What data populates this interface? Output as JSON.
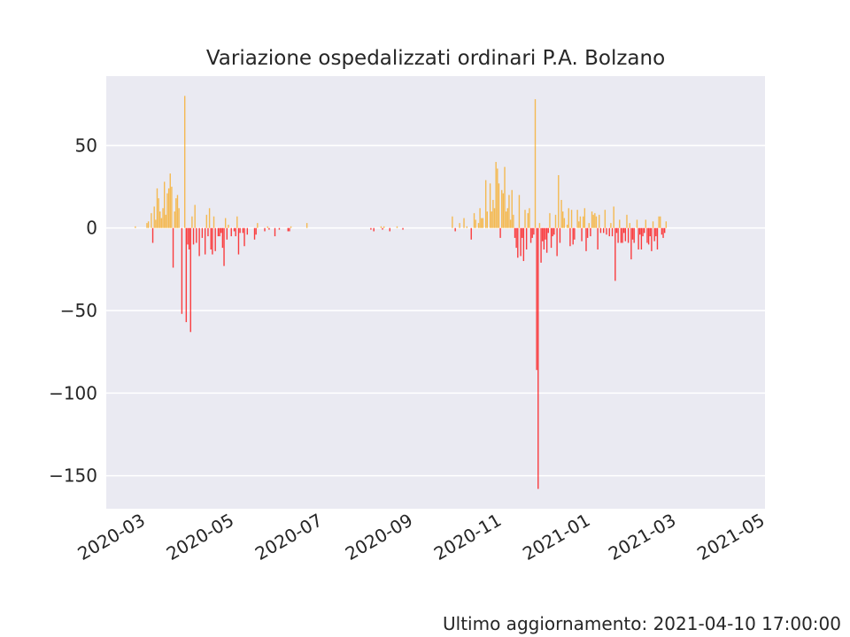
{
  "footer": {
    "label": "Ultimo aggiornamento:",
    "timestamp": "2021-04-10 17:00:00"
  },
  "colors": {
    "positive": "#f7a81b",
    "negative": "#ff0000",
    "plot_bg": "#eaeaf2",
    "grid": "#ffffff"
  },
  "chart_data": {
    "type": "bar",
    "title": "Variazione ospedalizzati ordinari P.A. Bolzano",
    "xlabel": "",
    "ylabel": "",
    "xlim": [
      "2020-02-06",
      "2021-05-04"
    ],
    "ylim": [
      -170,
      92
    ],
    "x_ticks": [
      "2020-03",
      "2020-05",
      "2020-07",
      "2020-09",
      "2020-11",
      "2021-01",
      "2021-03",
      "2021-05"
    ],
    "y_ticks": [
      50,
      0,
      -50,
      -100,
      -150
    ],
    "y_tick_labels": [
      "50",
      "0",
      "−50",
      "−100",
      "−150"
    ],
    "grid": true,
    "series": [
      {
        "points": [
          [
            "2020-02-26",
            1
          ],
          [
            "2020-03-05",
            3
          ],
          [
            "2020-03-06",
            4
          ],
          [
            "2020-03-08",
            9
          ],
          [
            "2020-03-09",
            -9
          ],
          [
            "2020-03-10",
            13
          ],
          [
            "2020-03-11",
            5
          ],
          [
            "2020-03-12",
            24
          ],
          [
            "2020-03-13",
            18
          ],
          [
            "2020-03-14",
            10
          ],
          [
            "2020-03-15",
            6
          ],
          [
            "2020-03-16",
            12
          ],
          [
            "2020-03-17",
            28
          ],
          [
            "2020-03-18",
            8
          ],
          [
            "2020-03-19",
            21
          ],
          [
            "2020-03-20",
            24
          ],
          [
            "2020-03-21",
            33
          ],
          [
            "2020-03-22",
            25
          ],
          [
            "2020-03-23",
            -24
          ],
          [
            "2020-03-24",
            10
          ],
          [
            "2020-03-25",
            18
          ],
          [
            "2020-03-26",
            20
          ],
          [
            "2020-03-27",
            12
          ],
          [
            "2020-03-29",
            -52
          ],
          [
            "2020-03-31",
            80
          ],
          [
            "2020-04-01",
            -57
          ],
          [
            "2020-04-02",
            -10
          ],
          [
            "2020-04-03",
            -13
          ],
          [
            "2020-04-04",
            -63
          ],
          [
            "2020-04-05",
            7
          ],
          [
            "2020-04-06",
            -10
          ],
          [
            "2020-04-07",
            14
          ],
          [
            "2020-04-08",
            -9
          ],
          [
            "2020-04-10",
            -17
          ],
          [
            "2020-04-12",
            -6
          ],
          [
            "2020-04-14",
            -16
          ],
          [
            "2020-04-15",
            8
          ],
          [
            "2020-04-16",
            -5
          ],
          [
            "2020-04-17",
            12
          ],
          [
            "2020-04-18",
            -13
          ],
          [
            "2020-04-19",
            -16
          ],
          [
            "2020-04-20",
            7
          ],
          [
            "2020-04-21",
            -14
          ],
          [
            "2020-04-23",
            -5
          ],
          [
            "2020-04-24",
            -5
          ],
          [
            "2020-04-25",
            -3
          ],
          [
            "2020-04-26",
            -12
          ],
          [
            "2020-04-27",
            -23
          ],
          [
            "2020-04-28",
            6
          ],
          [
            "2020-04-29",
            -7
          ],
          [
            "2020-04-30",
            2
          ],
          [
            "2020-05-02",
            -5
          ],
          [
            "2020-05-04",
            -2
          ],
          [
            "2020-05-05",
            -5
          ],
          [
            "2020-05-06",
            7
          ],
          [
            "2020-05-07",
            -16
          ],
          [
            "2020-05-08",
            -3
          ],
          [
            "2020-05-10",
            -3
          ],
          [
            "2020-05-11",
            -11
          ],
          [
            "2020-05-13",
            -4
          ],
          [
            "2020-05-18",
            -7
          ],
          [
            "2020-05-19",
            -4
          ],
          [
            "2020-05-20",
            3
          ],
          [
            "2020-05-25",
            -2
          ],
          [
            "2020-05-27",
            1
          ],
          [
            "2020-05-28",
            -1
          ],
          [
            "2020-06-01",
            -5
          ],
          [
            "2020-06-04",
            -1
          ],
          [
            "2020-06-10",
            -2
          ],
          [
            "2020-06-11",
            -2
          ],
          [
            "2020-06-12",
            1
          ],
          [
            "2020-06-23",
            3
          ],
          [
            "2020-08-06",
            -1
          ],
          [
            "2020-08-08",
            -2
          ],
          [
            "2020-08-13",
            1
          ],
          [
            "2020-08-14",
            -1
          ],
          [
            "2020-08-15",
            1
          ],
          [
            "2020-08-19",
            -2
          ],
          [
            "2020-08-24",
            1
          ],
          [
            "2020-08-28",
            -1
          ],
          [
            "2020-10-01",
            7
          ],
          [
            "2020-10-03",
            -2
          ],
          [
            "2020-10-06",
            3
          ],
          [
            "2020-10-09",
            6
          ],
          [
            "2020-10-11",
            1
          ],
          [
            "2020-10-14",
            -7
          ],
          [
            "2020-10-16",
            9
          ],
          [
            "2020-10-17",
            5
          ],
          [
            "2020-10-19",
            3
          ],
          [
            "2020-10-20",
            12
          ],
          [
            "2020-10-21",
            6
          ],
          [
            "2020-10-22",
            6
          ],
          [
            "2020-10-24",
            29
          ],
          [
            "2020-10-25",
            10
          ],
          [
            "2020-10-27",
            27
          ],
          [
            "2020-10-28",
            10
          ],
          [
            "2020-10-29",
            17
          ],
          [
            "2020-10-30",
            12
          ],
          [
            "2020-10-31",
            40
          ],
          [
            "2020-11-01",
            36
          ],
          [
            "2020-11-02",
            27
          ],
          [
            "2020-11-03",
            -6
          ],
          [
            "2020-11-04",
            23
          ],
          [
            "2020-11-05",
            21
          ],
          [
            "2020-11-06",
            37
          ],
          [
            "2020-11-07",
            10
          ],
          [
            "2020-11-08",
            12
          ],
          [
            "2020-11-09",
            20
          ],
          [
            "2020-11-10",
            5
          ],
          [
            "2020-11-11",
            23
          ],
          [
            "2020-11-12",
            8
          ],
          [
            "2020-11-13",
            -6
          ],
          [
            "2020-11-14",
            -12
          ],
          [
            "2020-11-15",
            -18
          ],
          [
            "2020-11-16",
            20
          ],
          [
            "2020-11-17",
            -17
          ],
          [
            "2020-11-18",
            -6
          ],
          [
            "2020-11-19",
            -20
          ],
          [
            "2020-11-20",
            11
          ],
          [
            "2020-11-21",
            -13
          ],
          [
            "2020-11-22",
            9
          ],
          [
            "2020-11-23",
            12
          ],
          [
            "2020-11-24",
            -9
          ],
          [
            "2020-11-25",
            -6
          ],
          [
            "2020-11-26",
            -4
          ],
          [
            "2020-11-27",
            78
          ],
          [
            "2020-11-28",
            -86
          ],
          [
            "2020-11-29",
            -158
          ],
          [
            "2020-11-30",
            3
          ],
          [
            "2020-12-01",
            -21
          ],
          [
            "2020-12-02",
            -8
          ],
          [
            "2020-12-03",
            -13
          ],
          [
            "2020-12-04",
            -7
          ],
          [
            "2020-12-05",
            -15
          ],
          [
            "2020-12-06",
            -3
          ],
          [
            "2020-12-07",
            9
          ],
          [
            "2020-12-08",
            -12
          ],
          [
            "2020-12-09",
            -5
          ],
          [
            "2020-12-10",
            -4
          ],
          [
            "2020-12-11",
            8
          ],
          [
            "2020-12-12",
            -17
          ],
          [
            "2020-12-13",
            32
          ],
          [
            "2020-12-14",
            -9
          ],
          [
            "2020-12-15",
            17
          ],
          [
            "2020-12-16",
            10
          ],
          [
            "2020-12-17",
            6
          ],
          [
            "2020-12-19",
            2
          ],
          [
            "2020-12-20",
            12
          ],
          [
            "2020-12-21",
            -11
          ],
          [
            "2020-12-22",
            11
          ],
          [
            "2020-12-23",
            -10
          ],
          [
            "2020-12-24",
            -7
          ],
          [
            "2020-12-26",
            11
          ],
          [
            "2020-12-27",
            4
          ],
          [
            "2020-12-28",
            7
          ],
          [
            "2020-12-29",
            -8
          ],
          [
            "2020-12-30",
            7
          ],
          [
            "2020-12-31",
            12
          ],
          [
            "2021-01-01",
            -14
          ],
          [
            "2021-01-02",
            -6
          ],
          [
            "2021-01-03",
            3
          ],
          [
            "2021-01-04",
            -5
          ],
          [
            "2021-01-05",
            10
          ],
          [
            "2021-01-06",
            8
          ],
          [
            "2021-01-07",
            9
          ],
          [
            "2021-01-08",
            7
          ],
          [
            "2021-01-09",
            -13
          ],
          [
            "2021-01-10",
            8
          ],
          [
            "2021-01-11",
            -3
          ],
          [
            "2021-01-13",
            -3
          ],
          [
            "2021-01-14",
            11
          ],
          [
            "2021-01-15",
            -4
          ],
          [
            "2021-01-17",
            -5
          ],
          [
            "2021-01-18",
            3
          ],
          [
            "2021-01-19",
            -5
          ],
          [
            "2021-01-20",
            13
          ],
          [
            "2021-01-21",
            -32
          ],
          [
            "2021-01-22",
            -3
          ],
          [
            "2021-01-23",
            -9
          ],
          [
            "2021-01-24",
            5
          ],
          [
            "2021-01-25",
            -9
          ],
          [
            "2021-01-26",
            -9
          ],
          [
            "2021-01-27",
            -3
          ],
          [
            "2021-01-28",
            -8
          ],
          [
            "2021-01-29",
            8
          ],
          [
            "2021-01-30",
            -9
          ],
          [
            "2021-01-31",
            3
          ],
          [
            "2021-02-01",
            -19
          ],
          [
            "2021-02-02",
            -7
          ],
          [
            "2021-02-03",
            -9
          ],
          [
            "2021-02-05",
            5
          ],
          [
            "2021-02-06",
            -13
          ],
          [
            "2021-02-07",
            -4
          ],
          [
            "2021-02-08",
            -13
          ],
          [
            "2021-02-09",
            -5
          ],
          [
            "2021-02-10",
            -3
          ],
          [
            "2021-02-11",
            5
          ],
          [
            "2021-02-12",
            -9
          ],
          [
            "2021-02-13",
            -10
          ],
          [
            "2021-02-14",
            -5
          ],
          [
            "2021-02-15",
            -14
          ],
          [
            "2021-02-16",
            4
          ],
          [
            "2021-02-17",
            -8
          ],
          [
            "2021-02-18",
            -5
          ],
          [
            "2021-02-19",
            -13
          ],
          [
            "2021-02-20",
            7
          ],
          [
            "2021-02-21",
            7
          ],
          [
            "2021-02-22",
            -4
          ],
          [
            "2021-02-23",
            -6
          ],
          [
            "2021-02-24",
            -3
          ],
          [
            "2021-02-25",
            4
          ]
        ]
      }
    ]
  }
}
